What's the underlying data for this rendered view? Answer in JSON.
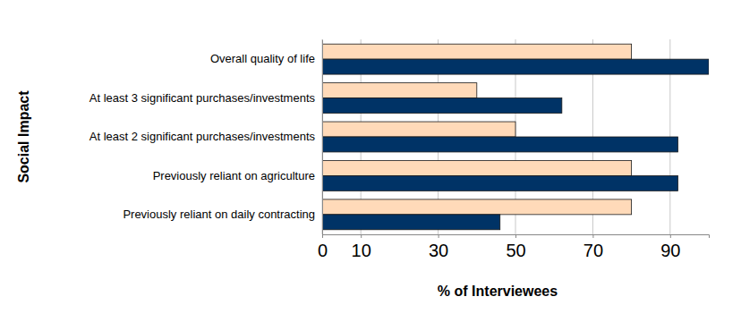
{
  "chart_data": {
    "type": "bar",
    "orientation": "horizontal",
    "x_label": "% of Interviewees",
    "y_label": "Social Impact",
    "categories": [
      "Overall quality of life",
      "At least 3 significant purchases/investments",
      "At least 2 significant purchases/investments",
      "Previously reliant on agriculture",
      "Previously reliant on daily contracting"
    ],
    "series": [
      {
        "color": "#ffdab9",
        "values": [
          80,
          40,
          50,
          80,
          80
        ]
      },
      {
        "color": "#003366",
        "values": [
          100,
          62,
          92,
          92,
          46
        ]
      }
    ],
    "xlim": [
      0,
      100
    ],
    "xticks": [
      0,
      10,
      30,
      50,
      70,
      90
    ],
    "grid": true
  }
}
